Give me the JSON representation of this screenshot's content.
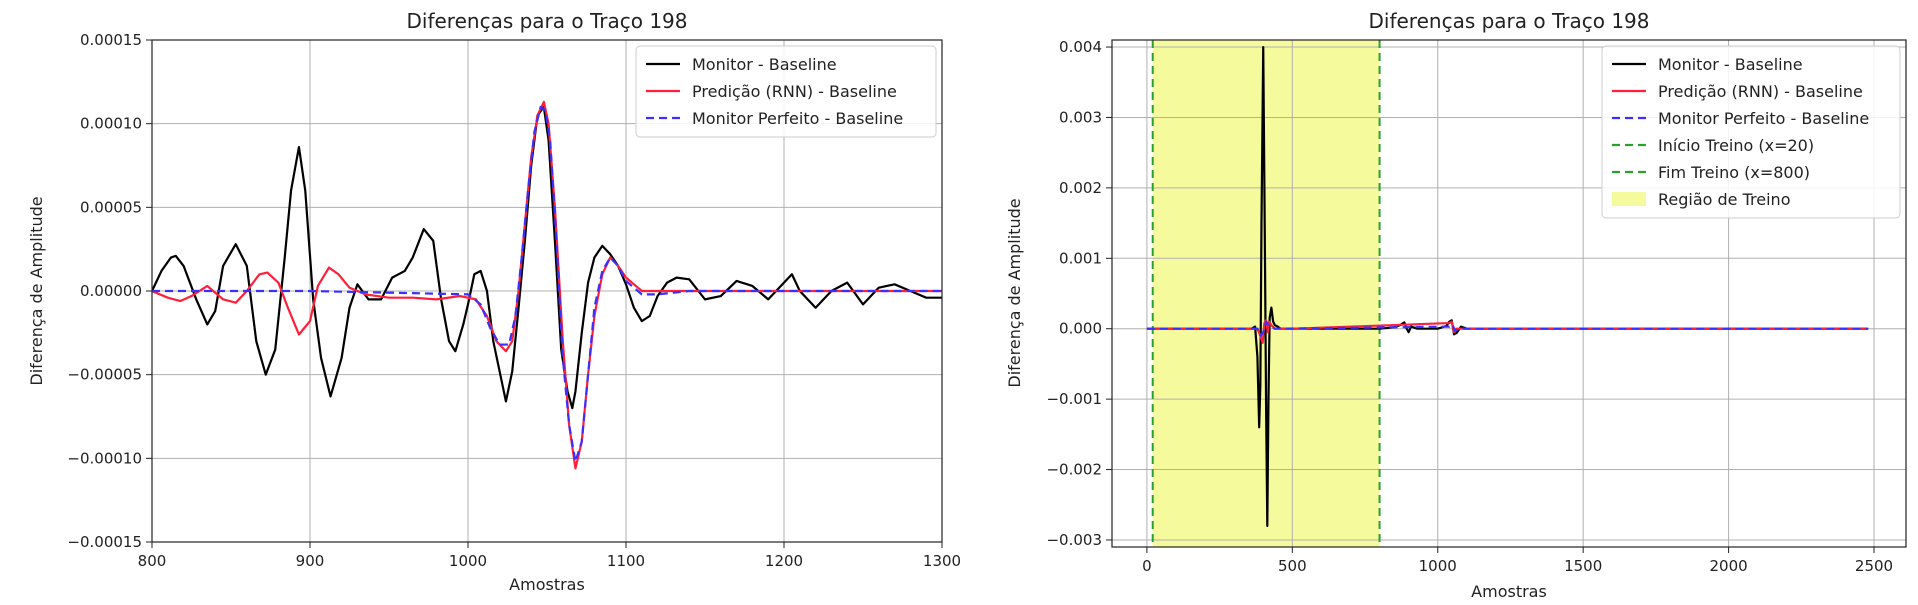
{
  "chart_data": [
    {
      "type": "line",
      "title": "Diferenças para o Traço 198",
      "xlabel": "Amostras",
      "ylabel": "Diferença de Amplitude",
      "xlim": [
        800,
        1300
      ],
      "ylim": [
        -0.00015,
        0.00015
      ],
      "xticks": [
        "800",
        "900",
        "1000",
        "1100",
        "1200",
        "1300"
      ],
      "yticks": [
        "0.00015",
        "0.00010",
        "0.00005",
        "0.00000",
        "−0.00005",
        "−0.00010",
        "−0.00015"
      ],
      "grid": true,
      "legend_position": "top-right",
      "series": [
        {
          "name": "Monitor - Baseline",
          "color": "#000000",
          "style": "solid",
          "x": [
            800,
            806,
            812,
            815,
            820,
            828,
            835,
            840,
            845,
            853,
            860,
            866,
            872,
            878,
            884,
            888,
            893,
            897,
            902,
            907,
            913,
            920,
            925,
            930,
            937,
            945,
            952,
            960,
            965,
            972,
            978,
            983,
            988,
            992,
            997,
            1000,
            1004,
            1008,
            1012,
            1016,
            1020,
            1024,
            1028,
            1032,
            1036,
            1040,
            1044,
            1048,
            1051,
            1055,
            1059,
            1063,
            1066,
            1068,
            1072,
            1076,
            1080,
            1085,
            1090,
            1095,
            1100,
            1105,
            1110,
            1115,
            1120,
            1126,
            1132,
            1140,
            1150,
            1160,
            1170,
            1180,
            1190,
            1200,
            1205,
            1210,
            1220,
            1230,
            1240,
            1250,
            1260,
            1270,
            1280,
            1290,
            1300
          ],
          "y": [
            0.0,
            1.2e-05,
            2e-05,
            2.1e-05,
            1.5e-05,
            -5e-06,
            -2e-05,
            -1.2e-05,
            1.5e-05,
            2.8e-05,
            1.5e-05,
            -3e-05,
            -5e-05,
            -3.5e-05,
            2e-05,
            6e-05,
            8.6e-05,
            6e-05,
            -5e-06,
            -4e-05,
            -6.3e-05,
            -4e-05,
            -1e-05,
            4e-06,
            -5e-06,
            -5e-06,
            8e-06,
            1.2e-05,
            2e-05,
            3.7e-05,
            3e-05,
            -5e-06,
            -3e-05,
            -3.6e-05,
            -2e-05,
            -8e-06,
            1e-05,
            1.2e-05,
            0.0,
            -3e-05,
            -4.8e-05,
            -6.6e-05,
            -4.8e-05,
            -1e-05,
            3e-05,
            7.5e-05,
            0.000105,
            0.00011,
            9e-05,
            3e-05,
            -3.5e-05,
            -6e-05,
            -7e-05,
            -6e-05,
            -2.5e-05,
            5e-06,
            2e-05,
            2.7e-05,
            2.2e-05,
            1.5e-05,
            4e-06,
            -1e-05,
            -1.8e-05,
            -1.5e-05,
            -3e-06,
            5e-06,
            8e-06,
            7e-06,
            -5e-06,
            -3e-06,
            6e-06,
            3e-06,
            -5e-06,
            5e-06,
            1e-05,
            0.0,
            -1e-05,
            0.0,
            5e-06,
            -8e-06,
            2e-06,
            4e-06,
            0.0,
            -4e-06,
            -4e-06
          ]
        },
        {
          "name": "Predição (RNN) - Baseline",
          "color": "#ff1f3a",
          "style": "solid",
          "x": [
            800,
            810,
            818,
            825,
            835,
            845,
            853,
            860,
            868,
            873,
            880,
            886,
            893,
            900,
            905,
            912,
            918,
            925,
            935,
            950,
            965,
            980,
            995,
            1005,
            1012,
            1018,
            1024,
            1028,
            1032,
            1036,
            1040,
            1044,
            1048,
            1051,
            1055,
            1060,
            1064,
            1068,
            1072,
            1076,
            1080,
            1085,
            1090,
            1095,
            1100,
            1110,
            1120,
            1140,
            1160,
            1180,
            1200,
            1220,
            1240,
            1260,
            1280,
            1300
          ],
          "y": [
            0.0,
            -4e-06,
            -6e-06,
            -3e-06,
            3e-06,
            -5e-06,
            -7e-06,
            0.0,
            1e-05,
            1.1e-05,
            5e-06,
            -1e-05,
            -2.6e-05,
            -1.8e-05,
            3e-06,
            1.4e-05,
            1e-05,
            2e-06,
            -2e-06,
            -4e-06,
            -4e-06,
            -5e-06,
            -3e-06,
            -5e-06,
            -1.5e-05,
            -3e-05,
            -3.6e-05,
            -3e-05,
            0.0,
            4e-05,
            8e-05,
            0.000105,
            0.000113,
            0.0001,
            5e-05,
            -3e-05,
            -8e-05,
            -0.000106,
            -9e-05,
            -5e-05,
            -1.5e-05,
            1e-05,
            2e-05,
            1.5e-05,
            8e-06,
            0.0,
            0.0,
            0.0,
            0.0,
            0.0,
            0.0,
            0.0,
            0.0,
            0.0,
            0.0,
            0.0
          ]
        },
        {
          "name": "Monitor Perfeito - Baseline",
          "color": "#3b2fff",
          "style": "dashed",
          "x": [
            800,
            900,
            1000,
            1008,
            1014,
            1020,
            1026,
            1030,
            1034,
            1038,
            1042,
            1046,
            1049,
            1052,
            1056,
            1060,
            1064,
            1068,
            1072,
            1076,
            1080,
            1085,
            1090,
            1095,
            1100,
            1110,
            1120,
            1140,
            1200,
            1300
          ],
          "y": [
            0.0,
            0.0,
            -2e-06,
            -8e-06,
            -2.2e-05,
            -3.2e-05,
            -3.2e-05,
            -1.5e-05,
            2e-05,
            6e-05,
            9.5e-05,
            0.00011,
            0.000108,
            9e-05,
            3e-05,
            -4e-05,
            -8e-05,
            -0.000102,
            -9e-05,
            -5e-05,
            -1e-05,
            1.2e-05,
            2e-05,
            1.5e-05,
            6e-06,
            -2e-06,
            -2e-06,
            0.0,
            0.0,
            0.0
          ]
        }
      ]
    },
    {
      "type": "line",
      "title": "Diferenças para o Traço 198",
      "xlabel": "Amostras",
      "ylabel": "Diferença de Amplitude",
      "xlim": [
        -120,
        2610
      ],
      "ylim": [
        -0.0031,
        0.0041
      ],
      "xticks": [
        "0",
        "500",
        "1000",
        "1500",
        "2000",
        "2500"
      ],
      "yticks": [
        "0.004",
        "0.003",
        "0.002",
        "0.001",
        "0.000",
        "−0.001",
        "−0.002",
        "−0.003"
      ],
      "grid": true,
      "legend_position": "top-right",
      "series": [
        {
          "name": "Monitor - Baseline",
          "color": "#000000",
          "style": "solid",
          "x": [
            0,
            360,
            372,
            380,
            386,
            390,
            394,
            400,
            406,
            410,
            414,
            418,
            422,
            428,
            434,
            440,
            450,
            460,
            500,
            600,
            800,
            850,
            870,
            885,
            893,
            900,
            908,
            930,
            1000,
            1030,
            1040,
            1048,
            1056,
            1065,
            1080,
            1100,
            1200,
            1400,
            1600,
            1800,
            2000,
            2200,
            2480
          ],
          "y": [
            0.0,
            0.0,
            3e-05,
            -0.0004,
            -0.0014,
            -0.0008,
            0.0015,
            0.004,
            0.001,
            -0.0012,
            -0.0028,
            -0.001,
            0.00015,
            0.0003,
            0.0001,
            5e-05,
            3e-05,
            0.0,
            0.0,
            0.0,
            0.0,
            2e-05,
            5e-05,
            9e-05,
            0.0,
            -5e-05,
            3e-05,
            0.0,
            0.0,
            4e-05,
            0.0001,
            0.00012,
            -8e-05,
            -6e-05,
            3e-05,
            0.0,
            0.0,
            0.0,
            0.0,
            0.0,
            0.0,
            0.0,
            0.0
          ]
        },
        {
          "name": "Predição (RNN) - Baseline",
          "color": "#ff1f3a",
          "style": "solid",
          "x": [
            0,
            380,
            390,
            398,
            404,
            410,
            416,
            420,
            428,
            440,
            500,
            1040,
            1048,
            1056,
            1064,
            1100,
            2480
          ],
          "y": [
            0.0,
            0.0,
            -0.0001,
            -0.0002,
            8e-05,
            0.00012,
            -5e-05,
            0.0001,
            5e-05,
            0.0,
            0.0,
            8e-05,
            0.0001,
            -5e-05,
            0.0,
            0.0,
            0.0
          ]
        },
        {
          "name": "Monitor Perfeito - Baseline",
          "color": "#3b2fff",
          "style": "dashed",
          "x": [
            0,
            380,
            390,
            400,
            410,
            420,
            440,
            1040,
            1050,
            1060,
            1080,
            2480
          ],
          "y": [
            0.0,
            0.0,
            -0.0001,
            -5e-05,
            0.0001,
            4e-05,
            0.0,
            3e-05,
            6e-05,
            -3e-05,
            0.0,
            0.0
          ]
        }
      ],
      "vlines": [
        {
          "name": "Início Treino (x=20)",
          "x": 20,
          "color": "#2ca02c",
          "style": "dashed"
        },
        {
          "name": "Fim Treino (x=800)",
          "x": 800,
          "color": "#2ca02c",
          "style": "dashed"
        }
      ],
      "span": {
        "name": "Região de Treino",
        "x0": 20,
        "x1": 800,
        "color": "#f5fa9c"
      }
    }
  ]
}
